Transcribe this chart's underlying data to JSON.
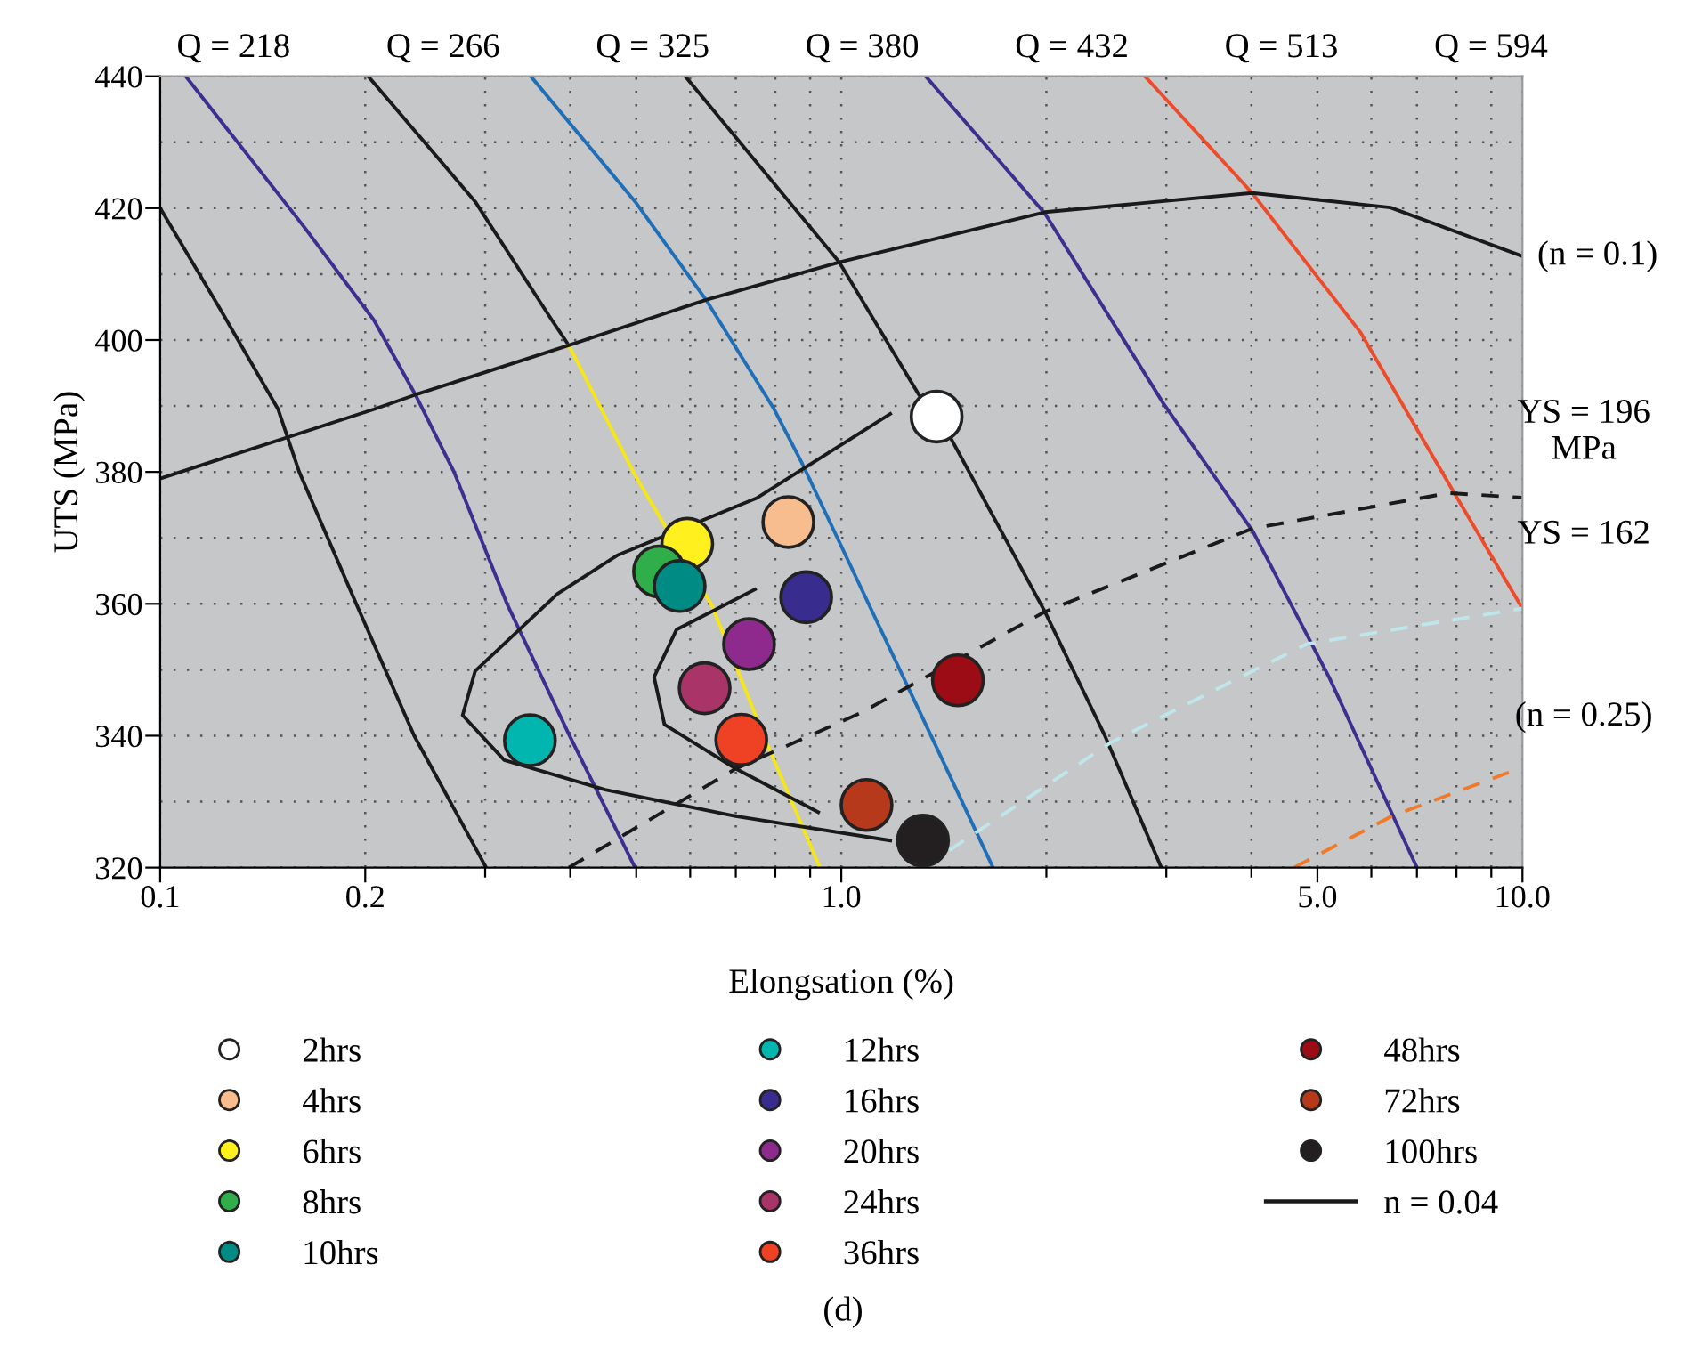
{
  "chart_data": {
    "type": "scatter",
    "xlabel": "Elongsation (%)",
    "ylabel": "UTS (MPa)",
    "log": "x",
    "grid": true,
    "legend": "bottom",
    "xlim": [
      0.1,
      10
    ],
    "ylim": [
      320,
      440
    ],
    "xticks": [
      {
        "value": 0.1,
        "label": "0.1"
      },
      {
        "value": 0.2,
        "label": "0.2"
      },
      {
        "value": 0.3,
        "label": null
      },
      {
        "value": 0.4,
        "label": null
      },
      {
        "value": 0.5,
        "label": null
      },
      {
        "value": 0.6,
        "label": null
      },
      {
        "value": 0.7,
        "label": null
      },
      {
        "value": 0.8,
        "label": null
      },
      {
        "value": 0.9,
        "label": null
      },
      {
        "value": 1,
        "label": "1.0"
      },
      {
        "value": 2,
        "label": null
      },
      {
        "value": 3,
        "label": null
      },
      {
        "value": 4,
        "label": null
      },
      {
        "value": 5,
        "label": "5.0"
      },
      {
        "value": 6,
        "label": null
      },
      {
        "value": 7,
        "label": null
      },
      {
        "value": 8,
        "label": null
      },
      {
        "value": 9,
        "label": null
      },
      {
        "value": 10,
        "label": "10.0"
      }
    ],
    "yticks": [
      320,
      {
        "value": 330,
        "label": null
      },
      340,
      {
        "value": 350,
        "label": null
      },
      360,
      {
        "value": 370,
        "label": null
      },
      380,
      {
        "value": 390,
        "label": null
      },
      400,
      {
        "value": 410,
        "label": null
      },
      420,
      {
        "value": 430,
        "label": null
      },
      440
    ],
    "series": [
      {
        "type": "line",
        "color": "#1a1a1a",
        "x": [
          0.1,
          0.122,
          0.149,
          0.16,
          0.194,
          0.236,
          0.301
        ],
        "values": [
          420,
          405,
          389.5,
          380,
          360,
          340,
          320
        ]
      },
      {
        "type": "line",
        "color": "#3b2f8f",
        "x": [
          0.109,
          0.162,
          0.206,
          0.237,
          0.27,
          0.323,
          0.399,
          0.498
        ],
        "values": [
          440,
          417.4,
          403,
          391.7,
          380,
          360,
          340,
          320
        ]
      },
      {
        "type": "line",
        "color": "#1a1a1a",
        "x": [
          0.202,
          0.29,
          0.376,
          0.398
        ],
        "values": [
          440,
          421,
          403,
          399.2
        ]
      },
      {
        "type": "line",
        "color": "#f5e61c",
        "x": [
          0.398,
          0.498,
          0.646,
          0.772,
          0.93
        ],
        "values": [
          399.2,
          379.5,
          359.7,
          339.6,
          320
        ]
      },
      {
        "type": "line",
        "color": "#1f6fb8",
        "x": [
          0.35,
          0.498,
          0.633,
          0.797,
          0.873,
          1.1,
          1.36,
          1.67
        ],
        "values": [
          440,
          421,
          406.1,
          389.5,
          381.6,
          359.7,
          339.6,
          320
        ]
      },
      {
        "type": "line",
        "color": "#1a1a1a",
        "x": [
          0.59,
          0.993,
          1.3,
          1.45,
          1.99,
          2.44,
          2.95
        ],
        "values": [
          440,
          411.8,
          391.7,
          385,
          358.8,
          339.9,
          320
        ]
      },
      {
        "type": "line",
        "color": "#3b2f8f",
        "x": [
          1.33,
          1.99,
          2.97,
          4.02,
          5.2,
          7.0
        ],
        "values": [
          440,
          419.2,
          390.4,
          371,
          348.9,
          320
        ]
      },
      {
        "type": "line",
        "color": "#ee4b2b",
        "x": [
          2.79,
          4.01,
          5.78,
          7.94,
          10
        ],
        "values": [
          440,
          422.3,
          401.2,
          376.8,
          359.3
        ]
      },
      {
        "type": "line",
        "color": "#1a1a1a",
        "x": [
          0.1,
          0.206,
          0.237,
          0.398,
          0.633,
          0.993,
          1.99,
          4.01,
          6.4,
          10
        ],
        "values": [
          379,
          389.5,
          391.7,
          399.2,
          406.1,
          411.8,
          419.4,
          422.3,
          420.1,
          412.7
        ]
      },
      {
        "type": "line",
        "color": "#1a1a1a",
        "line_style": "dashed",
        "x": [
          0.398,
          0.7,
          1.07,
          1.99,
          4.01,
          7.79,
          10
        ],
        "values": [
          320,
          335,
          343.5,
          358.8,
          371.4,
          376.8,
          376.1
        ]
      },
      {
        "type": "line",
        "color": "#bfe6ea",
        "line_style": "dashed",
        "x": [
          1.32,
          2.49,
          4.82,
          10
        ],
        "values": [
          320,
          339,
          353.9,
          359.3
        ]
      },
      {
        "type": "line",
        "color": "#f07a2a",
        "line_style": "dashed",
        "x": [
          4.62,
          6.43,
          10
        ],
        "values": [
          320,
          327.8,
          335.2
        ]
      },
      {
        "type": "line",
        "color": "#1a1a1a",
        "x": [
          0.747,
          0.573,
          0.531,
          0.55,
          0.7,
          0.925
        ],
        "values": [
          362.2,
          356.1,
          348.9,
          341.7,
          335,
          328.4
        ]
      },
      {
        "name": "2hrs",
        "marker": "circle",
        "color": "#ffffff",
        "x": [
          1.38
        ],
        "values": [
          388.4
        ]
      },
      {
        "name": "4hrs",
        "marker": "circle",
        "color": "#f8bd8e",
        "x": [
          0.836
        ],
        "values": [
          372.4
        ]
      },
      {
        "name": "6hrs",
        "marker": "circle",
        "color": "#fff01e",
        "x": [
          0.594
        ],
        "values": [
          369.1
        ]
      },
      {
        "name": "8hrs",
        "marker": "circle",
        "color": "#2fae4a",
        "x": [
          0.54
        ],
        "values": [
          364.9
        ]
      },
      {
        "name": "10hrs",
        "marker": "circle",
        "color": "#008b84",
        "x": [
          0.579
        ],
        "values": [
          362.7
        ]
      },
      {
        "name": "12hrs",
        "marker": "circle",
        "color": "#00b6ae",
        "x": [
          0.349
        ],
        "values": [
          339.3
        ]
      },
      {
        "name": "16hrs",
        "marker": "circle",
        "color": "#382d8e",
        "x": [
          0.888
        ],
        "values": [
          361.0
        ]
      },
      {
        "name": "20hrs",
        "marker": "circle",
        "color": "#8e2a8e",
        "x": [
          0.732
        ],
        "values": [
          353.9
        ]
      },
      {
        "name": "24hrs",
        "marker": "circle",
        "color": "#a83468",
        "x": [
          0.63
        ],
        "values": [
          347.2
        ]
      },
      {
        "name": "36hrs",
        "marker": "circle",
        "color": "#ef4123",
        "x": [
          0.713
        ],
        "values": [
          339.4
        ]
      },
      {
        "name": "48hrs",
        "marker": "circle",
        "color": "#9b0c15",
        "x": [
          1.483
        ],
        "values": [
          348.4
        ]
      },
      {
        "name": "72hrs",
        "marker": "circle",
        "color": "#b5391a",
        "x": [
          1.089
        ],
        "values": [
          329.5
        ]
      },
      {
        "name": "100hrs",
        "marker": "circle",
        "color": "#231f20",
        "x": [
          1.318
        ],
        "values": [
          324.1
        ]
      },
      {
        "type": "line",
        "name": "n = 0.04",
        "color": "#1a1a1a",
        "x": [
          1.18,
          0.75,
          0.47,
          0.383,
          0.29,
          0.278,
          0.32,
          0.45,
          0.7,
          1.18
        ],
        "values": [
          388.8,
          376,
          367.4,
          361.5,
          349.8,
          343.1,
          336.3,
          331.8,
          327.8,
          324.1
        ]
      }
    ],
    "annotations": [
      "Q = 218",
      "Q = 266",
      "Q = 325",
      "Q = 380",
      "Q = 432",
      "Q = 513",
      "Q = 594",
      {
        "text": "(n = 0.1)",
        "x": 10,
        "y": 412.7
      },
      "YS = 196\nMPa",
      "YS = 162",
      "(n = 0.25)",
      "(d)"
    ]
  }
}
